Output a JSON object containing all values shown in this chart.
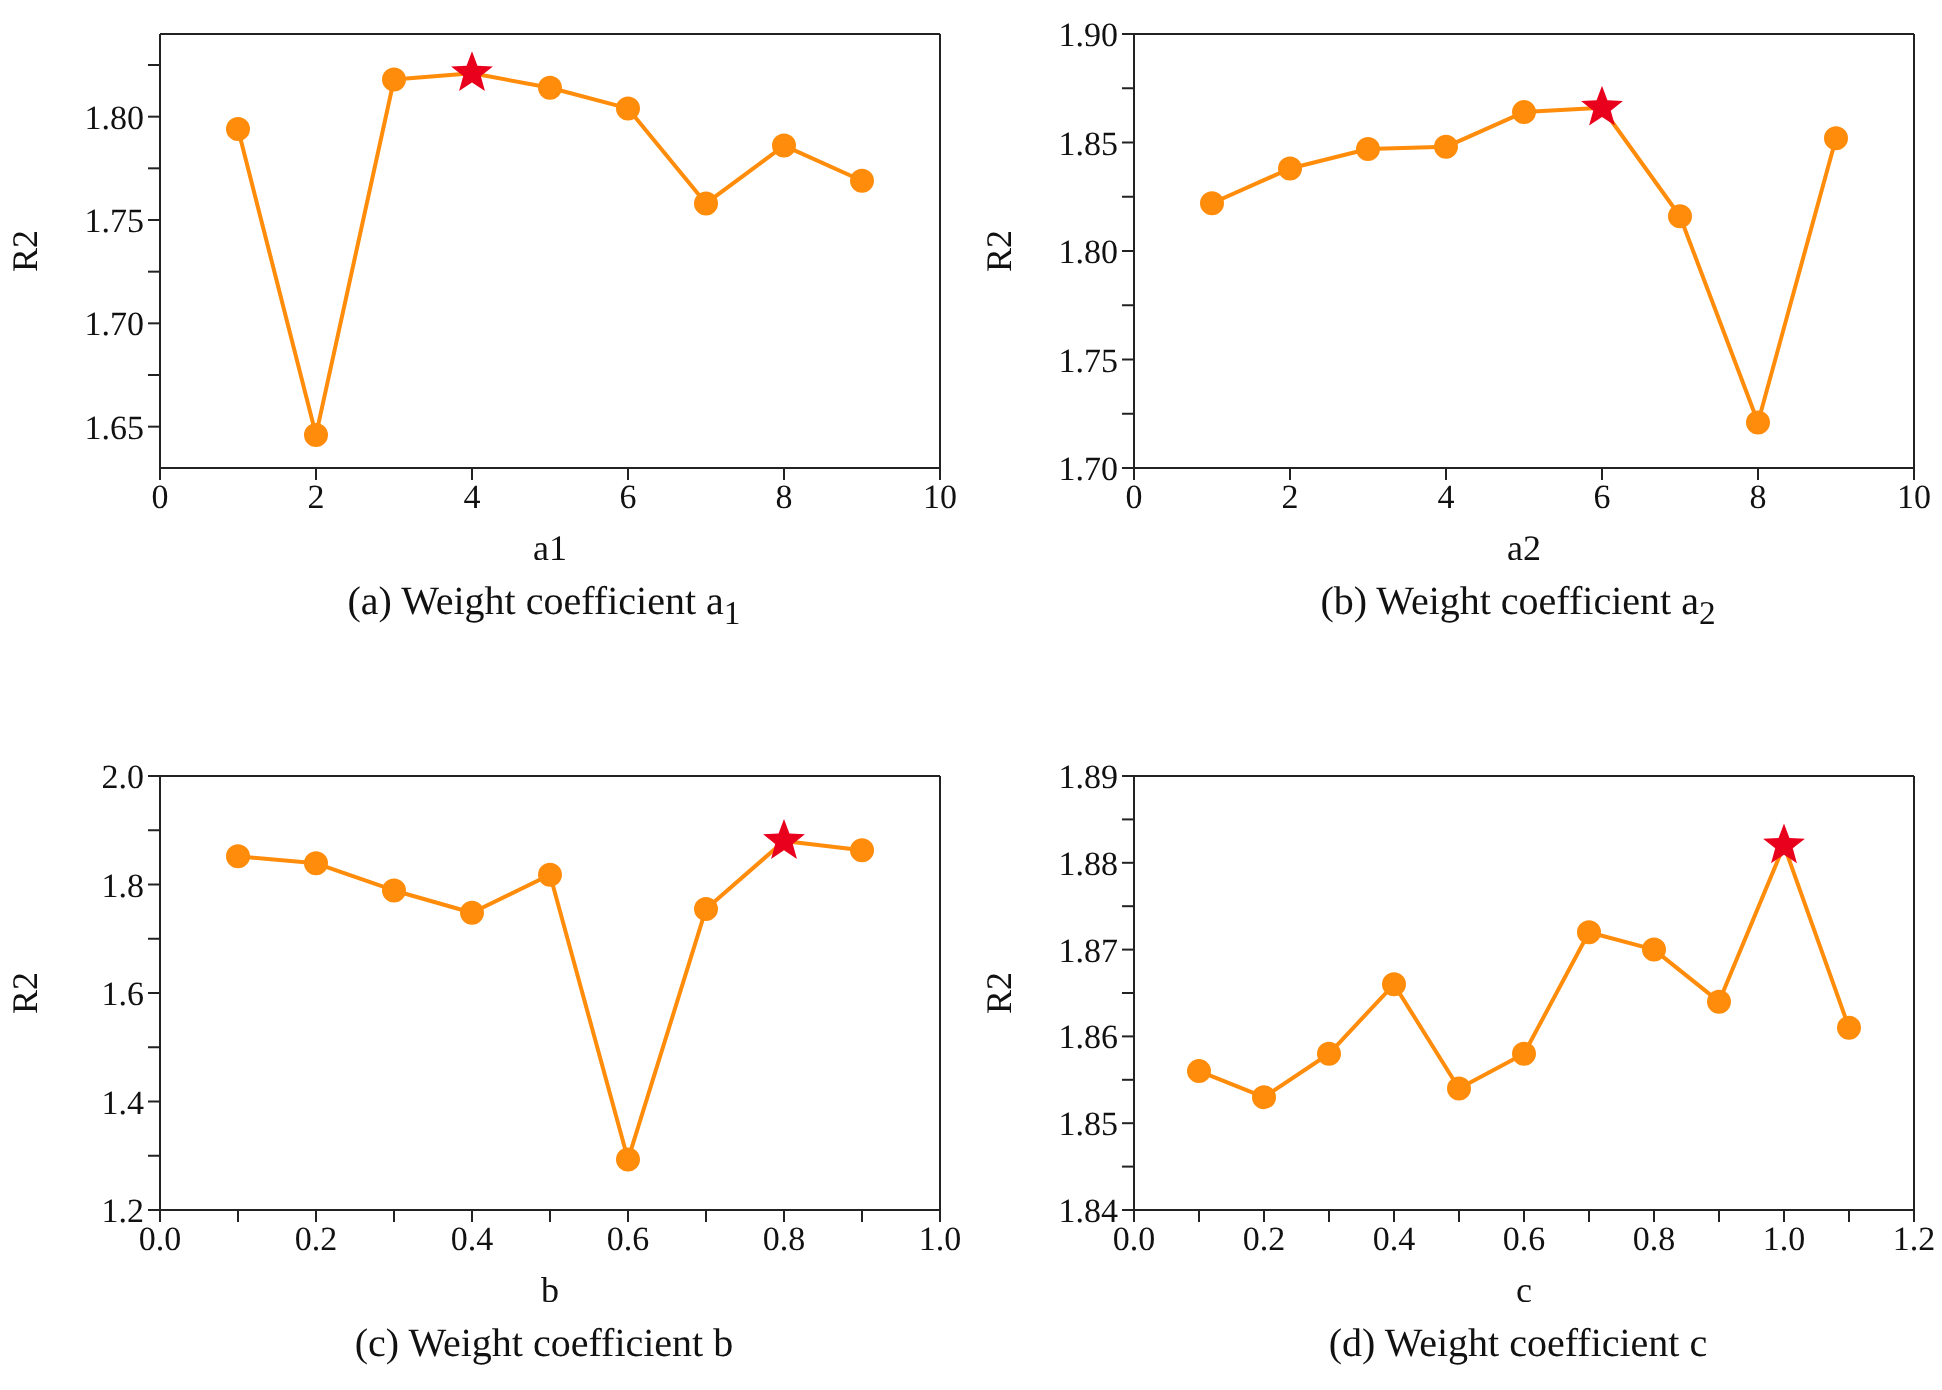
{
  "chart_data": [
    {
      "type": "line",
      "title": "(a) Weight coefficient a$_{1}$",
      "xlabel": "a1",
      "ylabel": "R2",
      "xlim": [
        0,
        10
      ],
      "xticks": [
        0,
        2,
        4,
        6,
        8,
        10
      ],
      "ylim": [
        1.63,
        1.84
      ],
      "yticks": [
        {
          "value": 1.65,
          "label": "1.65"
        },
        {
          "value": 1.675,
          "label": null
        },
        {
          "value": 1.7,
          "label": "1.70"
        },
        {
          "value": 1.725,
          "label": null
        },
        {
          "value": 1.75,
          "label": "1.75"
        },
        {
          "value": 1.775,
          "label": null
        },
        {
          "value": 1.8,
          "label": "1.80"
        },
        {
          "value": 1.825,
          "label": null
        }
      ],
      "grid": false,
      "legend": false,
      "line_style": "solid",
      "series": [
        {
          "marker": "circle",
          "color": "#ff8c0a",
          "x": [
            1,
            2,
            3,
            4,
            5,
            6,
            7,
            8,
            9
          ],
          "values": [
            1.794,
            1.646,
            1.818,
            1.821,
            1.814,
            1.804,
            1.758,
            1.786,
            1.769
          ]
        },
        {
          "type": "scatter",
          "marker": "star",
          "color": "#e8001c",
          "x": [
            4
          ],
          "values": [
            1.821
          ]
        }
      ]
    },
    {
      "type": "line",
      "title": "(b) Weight coefficient a$_{2}$",
      "xlabel": "a2",
      "ylabel": "R2",
      "xlim": [
        0,
        10
      ],
      "xticks": [
        0,
        2,
        4,
        6,
        8,
        10
      ],
      "ylim": [
        1.7,
        1.9
      ],
      "yticks": [
        {
          "value": 1.7,
          "label": "1.70"
        },
        {
          "value": 1.725,
          "label": null
        },
        {
          "value": 1.75,
          "label": "1.75"
        },
        {
          "value": 1.775,
          "label": null
        },
        {
          "value": 1.8,
          "label": "1.80"
        },
        {
          "value": 1.825,
          "label": null
        },
        {
          "value": 1.85,
          "label": "1.85"
        },
        {
          "value": 1.875,
          "label": null
        },
        {
          "value": 1.9,
          "label": "1.90"
        }
      ],
      "grid": false,
      "legend": false,
      "line_style": "solid",
      "series": [
        {
          "marker": "circle",
          "color": "#ff8c0a",
          "x": [
            1,
            2,
            3,
            4,
            5,
            6,
            7,
            8,
            9
          ],
          "values": [
            1.822,
            1.838,
            1.847,
            1.848,
            1.864,
            1.866,
            1.816,
            1.721,
            1.852
          ]
        },
        {
          "type": "scatter",
          "marker": "star",
          "color": "#e8001c",
          "x": [
            6
          ],
          "values": [
            1.866
          ]
        }
      ]
    },
    {
      "type": "line",
      "title": "(c) Weight coefficient b",
      "xlabel": "b",
      "ylabel": "R2",
      "xlim": [
        0,
        1
      ],
      "xticks": [
        {
          "value": 0,
          "label": "0.0"
        },
        {
          "value": 0.1,
          "label": null
        },
        0.2,
        {
          "value": 0.3,
          "label": null
        },
        0.4,
        {
          "value": 0.5,
          "label": null
        },
        0.6,
        {
          "value": 0.7,
          "label": null
        },
        0.8,
        {
          "value": 0.9,
          "label": null
        },
        {
          "value": 1,
          "label": "1.0"
        }
      ],
      "ylim": [
        1.2,
        2.0
      ],
      "yticks": [
        1.2,
        {
          "value": 1.3,
          "label": null
        },
        1.4,
        {
          "value": 1.5,
          "label": null
        },
        1.6,
        {
          "value": 1.7,
          "label": null
        },
        1.8,
        {
          "value": 1.9,
          "label": null
        },
        {
          "value": 2,
          "label": "2.0"
        }
      ],
      "grid": false,
      "legend": false,
      "line_style": "solid",
      "series": [
        {
          "marker": "circle",
          "color": "#ff8c0a",
          "x": [
            0.1,
            0.2,
            0.3,
            0.4,
            0.5,
            0.6,
            0.7,
            0.8,
            0.9
          ],
          "values": [
            1.852,
            1.839,
            1.789,
            1.748,
            1.818,
            1.293,
            1.755,
            1.88,
            1.863
          ]
        },
        {
          "type": "scatter",
          "marker": "star",
          "color": "#e8001c",
          "x": [
            0.8
          ],
          "values": [
            1.88
          ]
        }
      ]
    },
    {
      "type": "line",
      "title": "(d) Weight coefficient c",
      "xlabel": "c",
      "ylabel": "R2",
      "xlim": [
        0,
        1.2
      ],
      "xticks": [
        {
          "value": 0,
          "label": "0.0"
        },
        {
          "value": 0.1,
          "label": null
        },
        0.2,
        {
          "value": 0.3,
          "label": null
        },
        0.4,
        {
          "value": 0.5,
          "label": null
        },
        0.6,
        {
          "value": 0.7,
          "label": null
        },
        0.8,
        {
          "value": 0.9,
          "label": null
        },
        {
          "value": 1,
          "label": "1.0"
        },
        {
          "value": 1.1,
          "label": null
        },
        1.2
      ],
      "ylim": [
        1.84,
        1.89
      ],
      "yticks": [
        1.84,
        {
          "value": 1.845,
          "label": null
        },
        1.85,
        {
          "value": 1.855,
          "label": null
        },
        1.86,
        {
          "value": 1.865,
          "label": null
        },
        1.87,
        {
          "value": 1.875,
          "label": null
        },
        1.88,
        {
          "value": 1.885,
          "label": null
        },
        1.89
      ],
      "grid": false,
      "legend": false,
      "line_style": "solid",
      "series": [
        {
          "marker": "circle",
          "color": "#ff8c0a",
          "x": [
            0.1,
            0.2,
            0.3,
            0.4,
            0.5,
            0.6,
            0.7,
            0.8,
            0.9,
            1.0,
            1.1
          ],
          "values": [
            1.856,
            1.853,
            1.858,
            1.866,
            1.854,
            1.858,
            1.872,
            1.87,
            1.864,
            1.882,
            1.861
          ]
        },
        {
          "type": "scatter",
          "marker": "star",
          "color": "#e8001c",
          "x": [
            1.0
          ],
          "values": [
            1.882
          ]
        }
      ]
    }
  ]
}
